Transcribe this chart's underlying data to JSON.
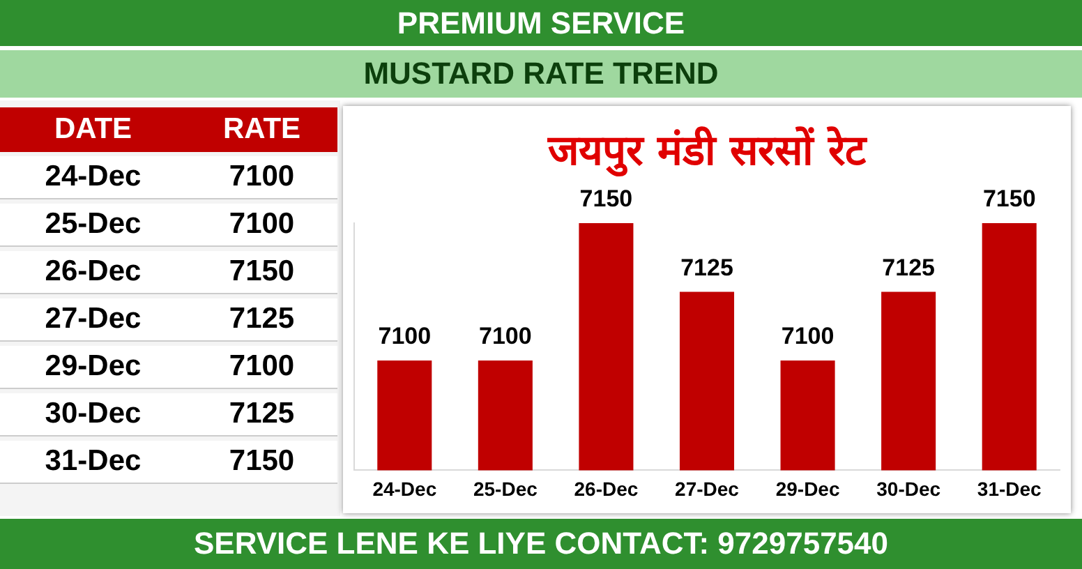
{
  "chart_data": [
    {
      "type": "other",
      "title": "PREMIUM SERVICE",
      "subtitle": "MUSTARD RATE TREND",
      "annotations": [
        "DATE",
        "RATE",
        "SERVICE LENE KE LIYE CONTACT: 9729757540"
      ],
      "categories": [
        "24-Dec",
        "25-Dec",
        "26-Dec",
        "27-Dec",
        "29-Dec",
        "30-Dec",
        "31-Dec"
      ],
      "value_labels": [
        "7100",
        "7100",
        "7150",
        "7125",
        "7100",
        "7125",
        "7150"
      ]
    },
    {
      "type": "bar",
      "title": "जयपुर मंडी सरसों रेट",
      "categories": [
        "24-Dec",
        "25-Dec",
        "26-Dec",
        "27-Dec",
        "29-Dec",
        "30-Dec",
        "31-Dec"
      ],
      "values": [
        7100,
        7100,
        7150,
        7125,
        7100,
        7125,
        7150
      ],
      "color": "#c00000",
      "ylim": [
        7060,
        7150
      ],
      "tick_labels": "x",
      "grid": false,
      "legend": false,
      "data_labels": true
    }
  ]
}
